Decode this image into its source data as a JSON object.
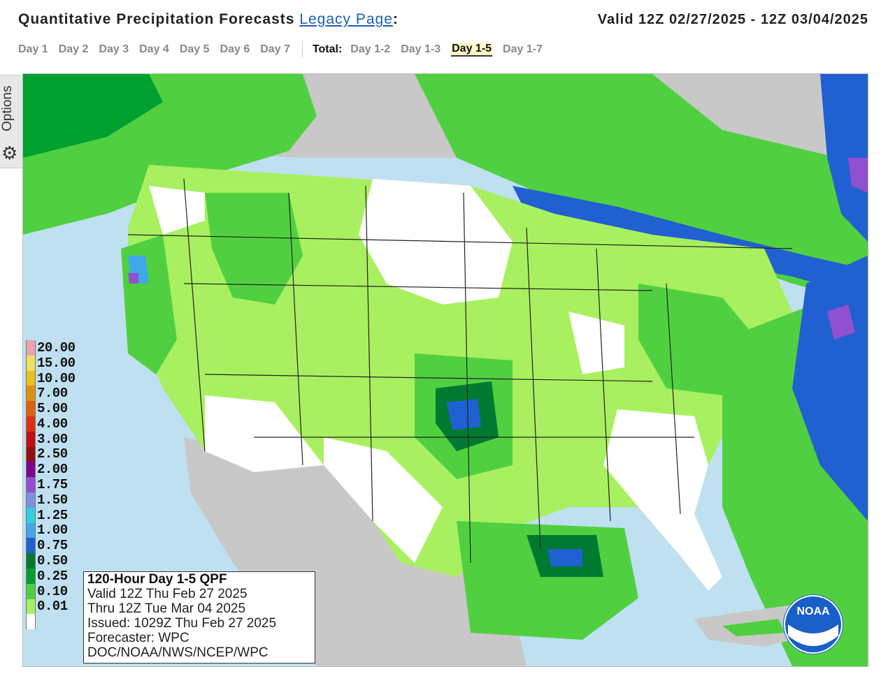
{
  "header": {
    "title": "Quantitative Precipitation Forecasts",
    "legacy_link": "Legacy Page",
    "colon": ":",
    "valid_range": "Valid 12Z 02/27/2025 - 12Z 03/04/2025"
  },
  "tabs": {
    "days": [
      "Day 1",
      "Day 2",
      "Day 3",
      "Day 4",
      "Day 5",
      "Day 6",
      "Day 7"
    ],
    "total_label": "Total:",
    "totals": [
      "Day 1-2",
      "Day 1-3",
      "Day 1-5",
      "Day 1-7"
    ],
    "active_total": "Day 1-5"
  },
  "options": {
    "label": "Options",
    "icon": "gear-icon"
  },
  "legend": [
    {
      "label": "20.00",
      "color": "#f0a0b0"
    },
    {
      "label": "15.00",
      "color": "#f0e060"
    },
    {
      "label": "10.00",
      "color": "#e8c020"
    },
    {
      "label": "7.00",
      "color": "#e09010"
    },
    {
      "label": "5.00",
      "color": "#e06010"
    },
    {
      "label": "4.00",
      "color": "#e03010"
    },
    {
      "label": "3.00",
      "color": "#c01010"
    },
    {
      "label": "2.50",
      "color": "#901010"
    },
    {
      "label": "2.00",
      "color": "#800090"
    },
    {
      "label": "1.75",
      "color": "#9050d0"
    },
    {
      "label": "1.50",
      "color": "#8090e0"
    },
    {
      "label": "1.25",
      "color": "#30d0e0"
    },
    {
      "label": "1.00",
      "color": "#40a8e8"
    },
    {
      "label": "0.75",
      "color": "#2060d0"
    },
    {
      "label": "0.50",
      "color": "#007a30"
    },
    {
      "label": "0.25",
      "color": "#00a030"
    },
    {
      "label": "0.10",
      "color": "#50d040"
    },
    {
      "label": "0.01",
      "color": "#a8f060"
    },
    {
      "label": "",
      "color": "#ffffff"
    }
  ],
  "info_box": {
    "title": "120-Hour Day 1-5 QPF",
    "valid": "Valid 12Z Thu Feb 27 2025",
    "thru": "Thru 12Z Tue Mar 04 2025",
    "issued": "Issued: 1029Z Thu Feb 27 2025",
    "forecaster": "Forecaster: WPC",
    "agency": "DOC/NOAA/NWS/NCEP/WPC"
  },
  "logo": {
    "text": "NOAA"
  },
  "colors": {
    "ocean": "#bfe0f0",
    "land_no_data": "#c8c8c8",
    "dry": "#ffffff",
    "light_green": "#a8f060",
    "green": "#50d040",
    "mid_green": "#00a030",
    "dark_green": "#007a30",
    "blue": "#2060d0",
    "light_blue": "#40a8e8",
    "cyan": "#30d0e0",
    "purple": "#9050d0"
  }
}
